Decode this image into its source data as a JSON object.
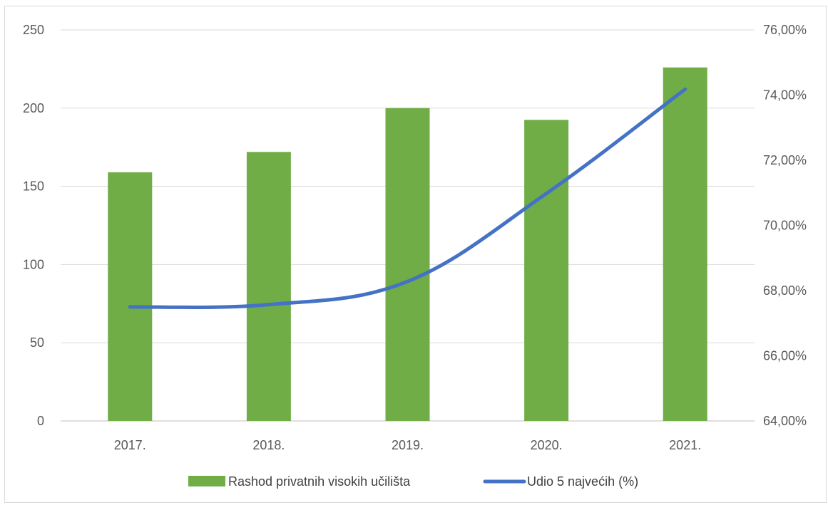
{
  "chart_data": {
    "type": "bar+line",
    "categories": [
      "2017.",
      "2018.",
      "2019.",
      "2020.",
      "2021."
    ],
    "series": [
      {
        "name": "Rashod privatnih visokih učilišta",
        "type": "bar",
        "axis": "left",
        "color": "#70AD47",
        "values": [
          159,
          172,
          200,
          192.5,
          226
        ]
      },
      {
        "name": "Udio 5 najvećih (%)",
        "type": "line",
        "axis": "right",
        "color": "#4472C4",
        "values": [
          67.5,
          67.57,
          68.28,
          70.98,
          74.18
        ]
      }
    ],
    "y_left": {
      "min": 0,
      "max": 250,
      "step": 50,
      "tick_labels": [
        "0",
        "50",
        "100",
        "150",
        "200",
        "250"
      ]
    },
    "y_right": {
      "min": 64,
      "max": 76,
      "step": 2,
      "tick_labels": [
        "64,00%",
        "66,00%",
        "68,00%",
        "70,00%",
        "72,00%",
        "74,00%",
        "76,00%"
      ]
    },
    "grid": true,
    "legend": "bottom"
  }
}
